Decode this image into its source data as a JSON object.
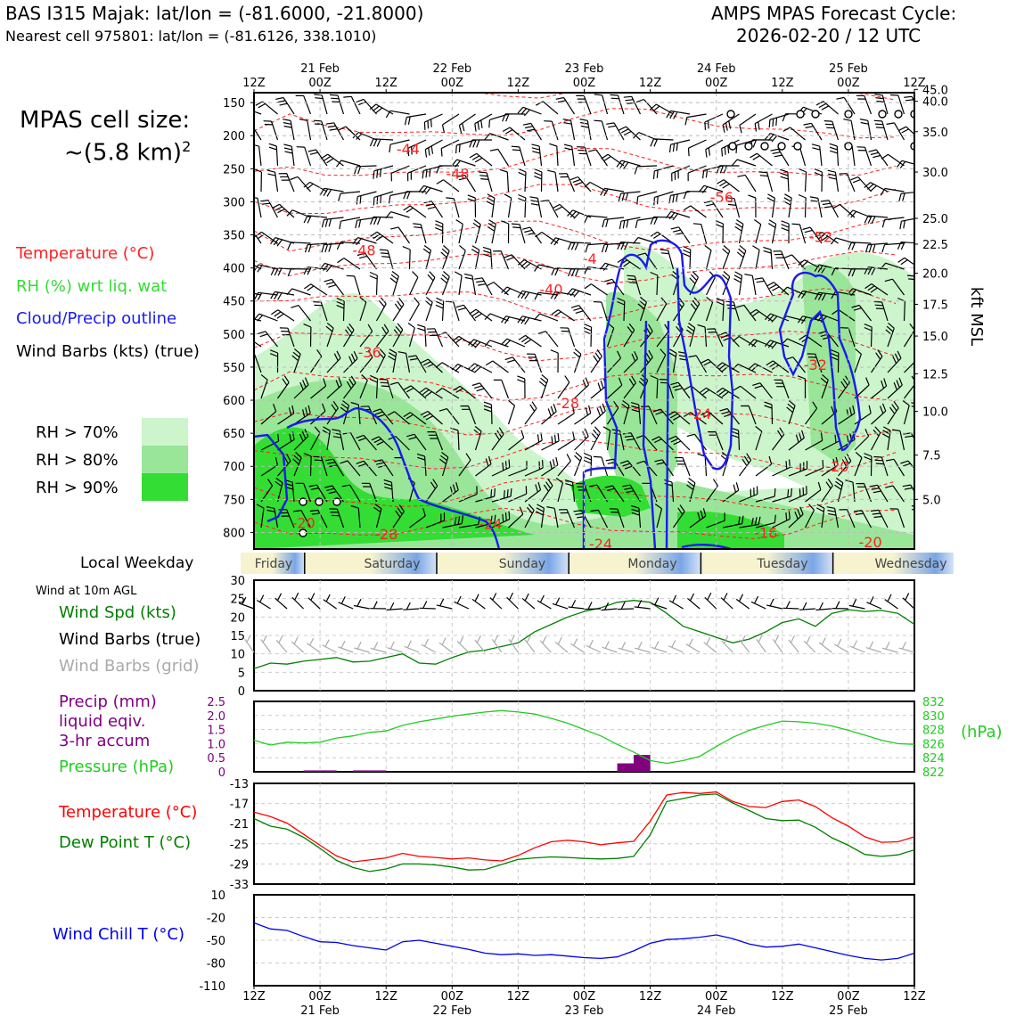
{
  "header": {
    "station_title": "BAS I315 Majak: lat/lon = (-81.6000, -21.8000)",
    "nearest_cell": "Nearest cell 975801: lat/lon = (-81.6126, 338.1010)",
    "forecast_title": "AMPS MPAS Forecast Cycle:",
    "forecast_cycle": "2026-02-20 / 12 UTC"
  },
  "sidebar": {
    "cell_size_label": "MPAS cell size:",
    "cell_size_value": "~(5.8 km)",
    "cell_size_exp": "2",
    "legend": [
      {
        "label": "Temperature (°C)",
        "color": "#ff2020"
      },
      {
        "label": "RH (%) wrt liq. wat",
        "color": "#33dd33"
      },
      {
        "label": "Cloud/Precip outline",
        "color": "#1a1aee"
      },
      {
        "label": "Wind Barbs (kts) (true)",
        "color": "#000000"
      }
    ],
    "rh_legend": [
      {
        "label": "RH > 70%",
        "color": "#ccf5cc"
      },
      {
        "label": "RH > 80%",
        "color": "#99e699"
      },
      {
        "label": "RH > 90%",
        "color": "#33dd33"
      }
    ],
    "weekday_label": "Local Weekday",
    "wind_10m_label": "Wind at 10m AGL",
    "wind_legend": [
      {
        "label": "Wind Spd (kts)",
        "color": "#008000"
      },
      {
        "label": "Wind Barbs (true)",
        "color": "#000000"
      },
      {
        "label": "Wind Barbs (grid)",
        "color": "#aaaaaa"
      }
    ],
    "precip_legend": [
      {
        "label": "Precip (mm)",
        "color": "#800080"
      },
      {
        "label": "liquid eqiv.",
        "color": "#800080"
      },
      {
        "label": "3-hr accum",
        "color": "#800080"
      },
      {
        "label": "Pressure (hPa)",
        "color": "#22cc22"
      }
    ],
    "temp_legend": [
      {
        "label": "Temperature (°C)",
        "color": "#ff0000"
      },
      {
        "label": "Dew Point T (°C)",
        "color": "#008000"
      }
    ],
    "windchill_legend": {
      "label": "Wind Chill T (°C)",
      "color": "#0000ee"
    }
  },
  "time_axis": {
    "top_labels": [
      {
        "h": 0,
        "l1": "",
        "l2": "12Z"
      },
      {
        "h": 12,
        "l1": "21 Feb",
        "l2": "00Z"
      },
      {
        "h": 24,
        "l1": "",
        "l2": "12Z"
      },
      {
        "h": 36,
        "l1": "22 Feb",
        "l2": "00Z"
      },
      {
        "h": 48,
        "l1": "",
        "l2": "12Z"
      },
      {
        "h": 60,
        "l1": "23 Feb",
        "l2": "00Z"
      },
      {
        "h": 72,
        "l1": "",
        "l2": "12Z"
      },
      {
        "h": 84,
        "l1": "24 Feb",
        "l2": "00Z"
      },
      {
        "h": 96,
        "l1": "",
        "l2": "12Z"
      },
      {
        "h": 108,
        "l1": "25 Feb",
        "l2": "00Z"
      },
      {
        "h": 120,
        "l1": "",
        "l2": "12Z"
      }
    ],
    "weekdays": [
      "Friday",
      "Saturday",
      "Sunday",
      "Monday",
      "Tuesday",
      "Wednesday"
    ]
  },
  "chart_data": [
    {
      "type": "line",
      "name": "cross-section",
      "x_range_hours": [
        0,
        120
      ],
      "y_label_right": "kft MSL",
      "pressure_ticks": [
        150,
        200,
        250,
        300,
        350,
        400,
        450,
        500,
        550,
        600,
        650,
        700,
        750,
        800
      ],
      "height_ticks": [
        {
          "label": "45.0",
          "p": 130
        },
        {
          "label": "40.0",
          "p": 148
        },
        {
          "label": "35.0",
          "p": 194
        },
        {
          "label": "30.0",
          "p": 255
        },
        {
          "label": "25.0",
          "p": 325
        },
        {
          "label": "22.5",
          "p": 364
        },
        {
          "label": "20.0",
          "p": 408
        },
        {
          "label": "17.5",
          "p": 455
        },
        {
          "label": "15.0",
          "p": 503
        },
        {
          "label": "12.5",
          "p": 560
        },
        {
          "label": "10.0",
          "p": 617
        },
        {
          "label": "7.5",
          "p": 683
        },
        {
          "label": "5.0",
          "p": 750
        }
      ],
      "temperature_labels": [
        {
          "v": "-44",
          "h": 28,
          "p": 228
        },
        {
          "v": "-48",
          "h": 37,
          "p": 265
        },
        {
          "v": "-56",
          "h": 85,
          "p": 301
        },
        {
          "v": "-52",
          "h": 103,
          "p": 361
        },
        {
          "v": "-48",
          "h": 20,
          "p": 381
        },
        {
          "v": "-4",
          "h": 61,
          "p": 394
        },
        {
          "v": "-40",
          "h": 54,
          "p": 440
        },
        {
          "v": "-36",
          "h": 21,
          "p": 535
        },
        {
          "v": "-32",
          "h": 102,
          "p": 554
        },
        {
          "v": "-28",
          "h": 57,
          "p": 612
        },
        {
          "v": "-24",
          "h": 81,
          "p": 628
        },
        {
          "v": "-20",
          "h": 106,
          "p": 708
        },
        {
          "v": "-20",
          "h": 9,
          "p": 793
        },
        {
          "v": "-28",
          "h": 24,
          "p": 810
        },
        {
          "v": "-24",
          "h": 43,
          "p": 795
        },
        {
          "v": "-24",
          "h": 63,
          "p": 825
        },
        {
          "v": "-16",
          "h": 93,
          "p": 808
        },
        {
          "v": "-20",
          "h": 112,
          "p": 822
        }
      ]
    },
    {
      "type": "line",
      "name": "wind-10m",
      "ylim": [
        0,
        30
      ],
      "yticks": [
        0,
        5,
        10,
        15,
        20,
        25,
        30
      ],
      "x": [
        0,
        3,
        6,
        9,
        12,
        15,
        18,
        21,
        24,
        27,
        30,
        33,
        36,
        39,
        42,
        45,
        48,
        51,
        54,
        57,
        60,
        63,
        66,
        69,
        72,
        75,
        78,
        81,
        84,
        87,
        90,
        93,
        96,
        99,
        102,
        105,
        108,
        111,
        114,
        117,
        120
      ],
      "series": [
        {
          "values": [
            6,
            7.5,
            7.2,
            8,
            8.5,
            9,
            7.8,
            8,
            9,
            10,
            7.5,
            7.2,
            9,
            10.5,
            11,
            12,
            13,
            16,
            18,
            20,
            21.5,
            22.5,
            24,
            24.5,
            24,
            21,
            17.5,
            16,
            14.5,
            13,
            14,
            16,
            18.5,
            19.5,
            17.5,
            21,
            22,
            21.5,
            21.8,
            21,
            18
          ]
        }
      ]
    },
    {
      "type": "bar",
      "name": "precip-pressure",
      "precip_ylim": [
        0,
        2.5
      ],
      "precip_yticks": [
        "0",
        "0.5",
        "1.0",
        "1.5",
        "2.0",
        "2.5"
      ],
      "pressure_ylim": [
        822,
        832
      ],
      "pressure_yticks": [
        "822",
        "824",
        "826",
        "828",
        "830",
        "832"
      ],
      "pressure_unit": "(hPa)",
      "precip": [
        {
          "h0": 9,
          "h1": 15,
          "v": 0.05
        },
        {
          "h0": 18,
          "h1": 24,
          "v": 0.05
        },
        {
          "h0": 66,
          "h1": 69,
          "v": 0.3
        },
        {
          "h0": 69,
          "h1": 72,
          "v": 0.55
        },
        {
          "h0": 69,
          "h1": 72,
          "v": 0.6
        }
      ],
      "pressure": [
        826.5,
        825.8,
        826.2,
        826.1,
        826.2,
        826.8,
        827.1,
        827.6,
        827.8,
        828.6,
        829.1,
        829.5,
        829.9,
        830.2,
        830.5,
        830.7,
        830.5,
        830.2,
        829.6,
        828.9,
        828.0,
        827.1,
        825.9,
        824.8,
        823.6,
        823.2,
        823.6,
        824.2,
        825.6,
        826.9,
        827.9,
        828.6,
        829.2,
        829.1,
        828.9,
        828.5,
        827.9,
        827.2,
        826.5,
        826.0,
        825.9
      ]
    },
    {
      "type": "line",
      "name": "temp-dewpoint",
      "ylim": [
        -33,
        -13
      ],
      "yticks": [
        -33,
        -29,
        -25,
        -21,
        -17,
        -13
      ],
      "series": [
        {
          "name": "Temperature (°C)",
          "values": [
            -18.7,
            -19.6,
            -20.9,
            -23.1,
            -25.3,
            -27.4,
            -28.6,
            -28.2,
            -27.8,
            -26.9,
            -27.5,
            -27.7,
            -28.0,
            -27.8,
            -28.2,
            -28.4,
            -27.3,
            -25.8,
            -24.6,
            -24.3,
            -24.6,
            -25.2,
            -24.8,
            -24.5,
            -20.5,
            -15.3,
            -14.8,
            -15.0,
            -14.7,
            -16.6,
            -17.6,
            -17.8,
            -16.6,
            -16.3,
            -17.6,
            -19.8,
            -21.5,
            -23.6,
            -24.7,
            -24.6,
            -23.6
          ]
        },
        {
          "name": "Dew Point T (°C)",
          "values": [
            -20.0,
            -21.5,
            -22.1,
            -23.7,
            -25.9,
            -28.3,
            -29.7,
            -30.5,
            -30.0,
            -29.0,
            -29.0,
            -29.2,
            -29.6,
            -30.2,
            -30.1,
            -29.1,
            -28.1,
            -27.8,
            -27.6,
            -27.7,
            -27.9,
            -28.0,
            -27.9,
            -27.5,
            -23.2,
            -16.6,
            -16.0,
            -15.3,
            -15.1,
            -16.9,
            -18.4,
            -20.0,
            -20.4,
            -20.3,
            -21.7,
            -23.8,
            -25.3,
            -27.1,
            -27.5,
            -27.2,
            -26.2
          ]
        }
      ]
    },
    {
      "type": "line",
      "name": "wind-chill",
      "ylim": [
        -110,
        10
      ],
      "yticks": [
        -110,
        -80,
        -50,
        -20,
        10
      ],
      "series": [
        {
          "values": [
            -27,
            -35,
            -37,
            -45,
            -52,
            -53,
            -57,
            -60,
            -63,
            -52,
            -50,
            -54,
            -58,
            -62,
            -67,
            -69,
            -68,
            -70,
            -69,
            -71,
            -73,
            -74,
            -72,
            -64,
            -54,
            -49,
            -48,
            -46,
            -43,
            -48,
            -55,
            -59,
            -58,
            -55,
            -60,
            -65,
            -70,
            -74,
            -76,
            -74,
            -67
          ]
        }
      ]
    }
  ]
}
